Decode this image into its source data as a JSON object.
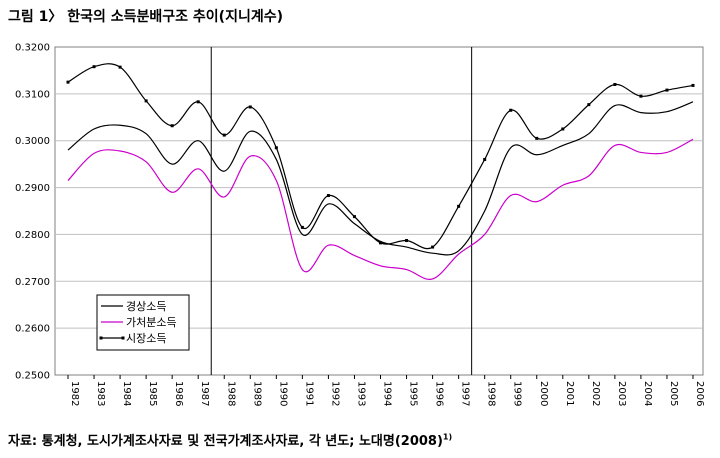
{
  "figure": {
    "title": "그림 1〉 한국의 소득분배구조 추이(지니계수)",
    "source": "자료: 통계청, 도시가계조사자료 및 전국가계조사자료, 각 년도; 노대명(2008)",
    "source_sup": "1)"
  },
  "chart_data": {
    "type": "line",
    "x": [
      1982,
      1983,
      1984,
      1985,
      1986,
      1987,
      1988,
      1989,
      1990,
      1991,
      1992,
      1993,
      1994,
      1995,
      1996,
      1997,
      1998,
      1999,
      2000,
      2001,
      2002,
      2003,
      2004,
      2005,
      2006
    ],
    "xticks": [
      "1982",
      "1983",
      "1984",
      "1985",
      "1986",
      "1987",
      "1988",
      "1989",
      "1990",
      "1991",
      "1992",
      "1993",
      "1994",
      "1995",
      "1996",
      "1997",
      "1998",
      "1999",
      "2000",
      "2001",
      "2002",
      "2003",
      "2004",
      "2005",
      "2006"
    ],
    "yticks": [
      "0.2500",
      "0.2600",
      "0.2700",
      "0.2800",
      "0.2900",
      "0.3000",
      "0.3100",
      "0.3200"
    ],
    "ylim": [
      0.25,
      0.32
    ],
    "vlines": [
      1987.5,
      1997.5
    ],
    "legend": "inside-lower-left",
    "series": [
      {
        "name": "경상소득",
        "color": "#000000",
        "marker": false,
        "values": [
          0.298,
          0.3025,
          0.3033,
          0.3015,
          0.295,
          0.3,
          0.2935,
          0.302,
          0.296,
          0.28,
          0.2865,
          0.2823,
          0.2785,
          0.2773,
          0.276,
          0.2765,
          0.285,
          0.2985,
          0.297,
          0.299,
          0.3015,
          0.3075,
          0.306,
          0.3062,
          0.3083
        ]
      },
      {
        "name": "가처분소득",
        "color": "#cc00cc",
        "marker": false,
        "values": [
          0.2915,
          0.2973,
          0.2978,
          0.2955,
          0.289,
          0.294,
          0.288,
          0.2967,
          0.2915,
          0.2725,
          0.2777,
          0.2755,
          0.2733,
          0.2725,
          0.2705,
          0.2758,
          0.28,
          0.2883,
          0.287,
          0.2905,
          0.2925,
          0.299,
          0.2975,
          0.2975,
          0.3003
        ]
      },
      {
        "name": "시장소득",
        "color": "#000000",
        "marker": true,
        "values": [
          0.3125,
          0.3158,
          0.3157,
          0.3085,
          0.3032,
          0.3083,
          0.3012,
          0.3072,
          0.2985,
          0.2815,
          0.2883,
          0.2838,
          0.2782,
          0.2787,
          0.2773,
          0.286,
          0.296,
          0.3065,
          0.3005,
          0.3025,
          0.3077,
          0.312,
          0.3095,
          0.3108,
          0.3118
        ]
      }
    ]
  }
}
